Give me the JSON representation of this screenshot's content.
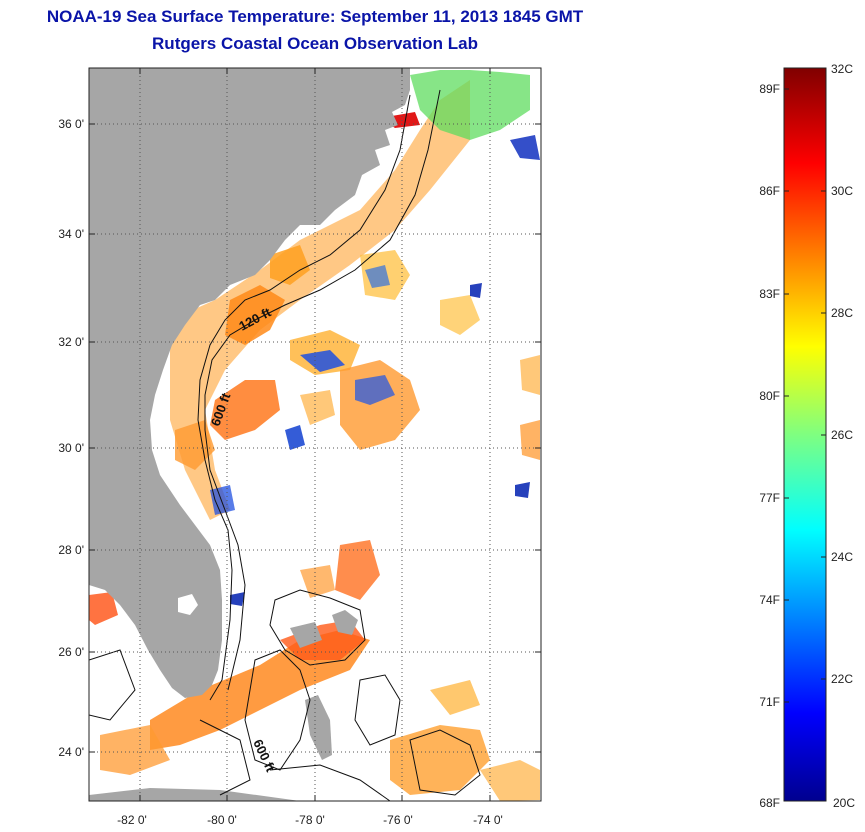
{
  "header": {
    "title": "NOAA-19 Sea Surface Temperature:  September 11, 2013 1845 GMT",
    "subtitle": "Rutgers Coastal Ocean Observation Lab"
  },
  "map": {
    "lat_ticks": [
      "24 0'",
      "26 0'",
      "28 0'",
      "30 0'",
      "32 0'",
      "34 0'",
      "36 0'"
    ],
    "lon_ticks": [
      "-82 0'",
      "-80 0'",
      "-78 0'",
      "-76 0'",
      "-74 0'"
    ],
    "contour_labels": [
      "120 ft",
      "600 ft",
      "600 ft"
    ],
    "land_color": "#a6a6a6",
    "grid_style": "dotted"
  },
  "colorbar": {
    "min_c": 20,
    "max_c": 32,
    "fahrenheit_labels": [
      "89F",
      "86F",
      "83F",
      "80F",
      "77F",
      "74F",
      "71F",
      "68F"
    ],
    "celsius_labels": [
      "32C",
      "30C",
      "28C",
      "26C",
      "24C",
      "22C",
      "20C"
    ],
    "colormap": "jet"
  }
}
